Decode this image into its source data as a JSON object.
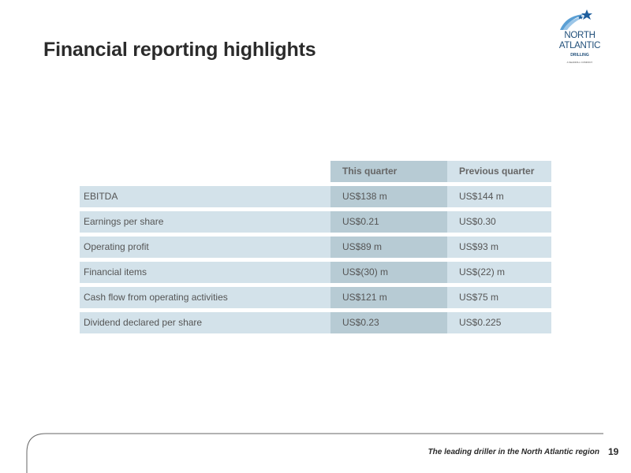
{
  "slide": {
    "title": "Financial reporting highlights",
    "footer_text": "The leading driller in the North Atlantic region",
    "page_number": "19"
  },
  "logo": {
    "line1": "NORTH",
    "line2": "ATLANTIC",
    "line3": "DRILLING",
    "line4": "A SEADRILL COMPANY",
    "icon": "shooting-star-logo-icon",
    "color": "#1f4e79",
    "star_color": "#1f5f9e"
  },
  "table": {
    "columns": [
      "",
      "This quarter",
      "Previous quarter"
    ],
    "rows": [
      {
        "label": "EBITDA",
        "this_quarter": "US$138 m",
        "previous_quarter": "US$144 m"
      },
      {
        "label": "Earnings per share",
        "this_quarter": "US$0.21",
        "previous_quarter": "US$0.30"
      },
      {
        "label": "Operating profit",
        "this_quarter": "US$89 m",
        "previous_quarter": "US$93 m"
      },
      {
        "label": "Financial items",
        "this_quarter": "US$(30) m",
        "previous_quarter": "US$(22) m"
      },
      {
        "label": "Cash flow from operating activities",
        "this_quarter": "US$121 m",
        "previous_quarter": "US$75 m"
      },
      {
        "label": "Dividend declared per share",
        "this_quarter": "US$0.23",
        "previous_quarter": "US$0.225"
      }
    ]
  },
  "colors": {
    "row_light": "#d3e2ea",
    "row_dark": "#b7cbd4"
  }
}
